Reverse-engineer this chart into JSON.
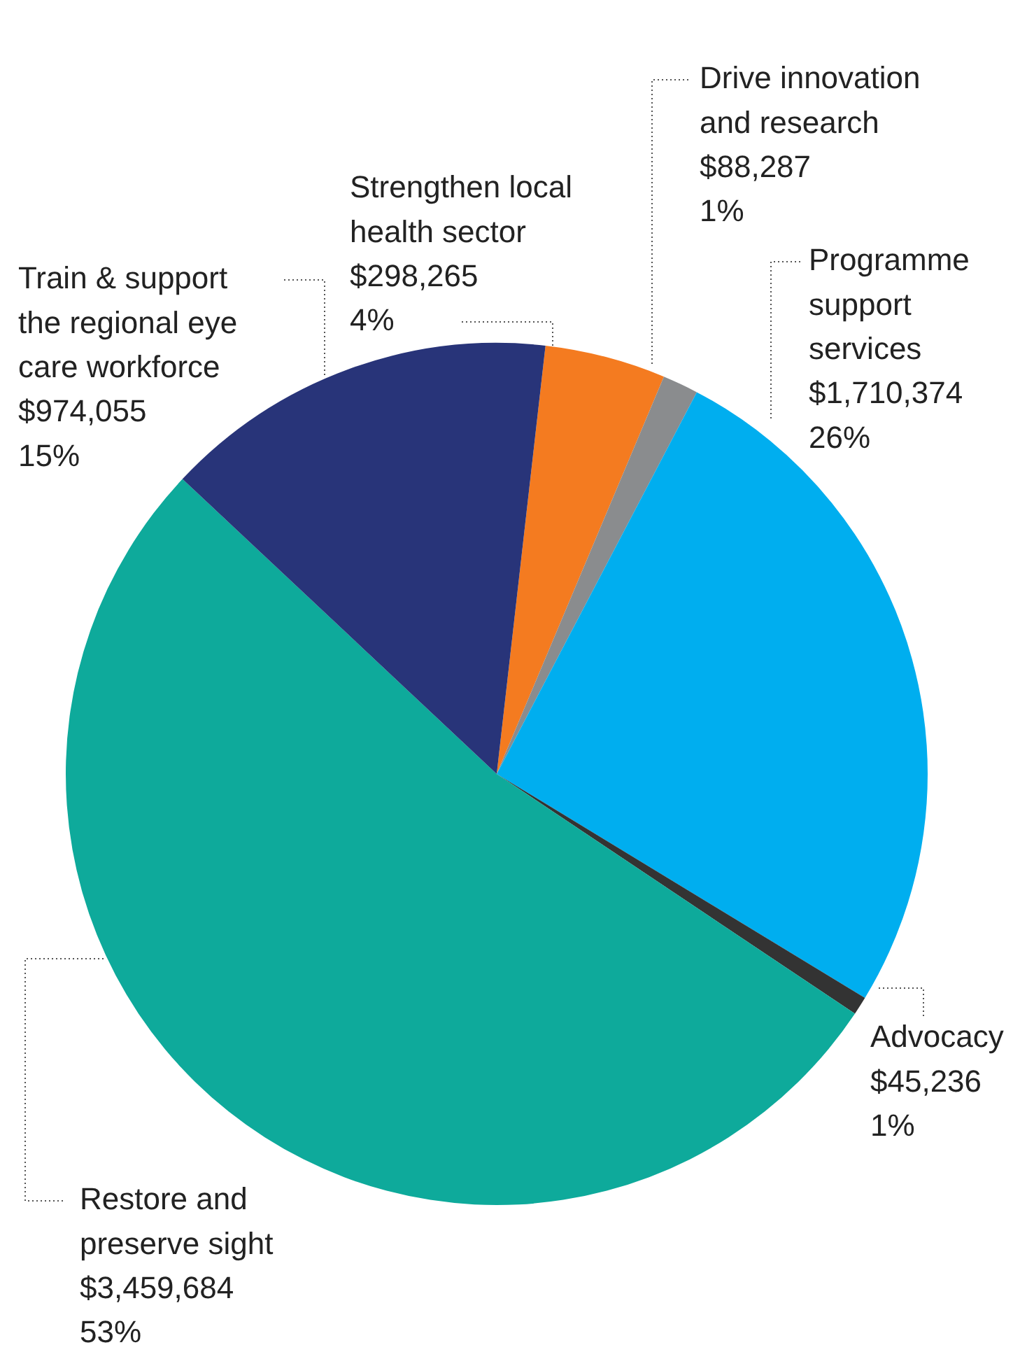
{
  "chart_data": {
    "type": "pie",
    "categories": [
      "Strengthen local health sector",
      "Drive innovation and research",
      "Programme support services",
      "Advocacy",
      "Restore and preserve sight",
      "Train & support the regional eye care workforce"
    ],
    "values": [
      298265,
      88287,
      1710374,
      45236,
      3459684,
      974055
    ],
    "colors": [
      "#f47b20",
      "#8a8c8e",
      "#00aeef",
      "#333333",
      "#0eaa9b",
      "#283479"
    ],
    "value_labels": [
      "$298,265\n4%",
      "$88,287\n1%",
      "$1,710,374\n26%",
      "$45,236\n1%",
      "$3,459,684\n53%",
      "$974,055\n15%"
    ],
    "legend": false
  }
}
